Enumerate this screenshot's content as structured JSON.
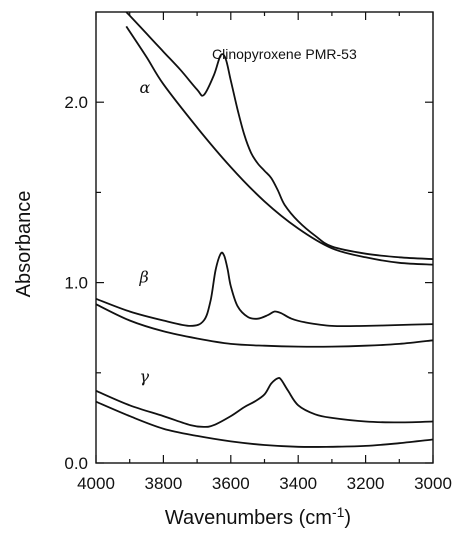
{
  "chart_data": {
    "type": "line",
    "title": "",
    "annotation": "Clinopyroxene PMR-53",
    "xlabel": "Wavenumbers (cm",
    "xlabel_superscript": "-1",
    "xlabel_suffix": ")",
    "ylabel": "Absorbance",
    "xlim": [
      4000,
      3000
    ],
    "ylim": [
      0.0,
      2.5
    ],
    "x_ticks": [
      4000,
      3800,
      3600,
      3400,
      3200,
      3000
    ],
    "x_tick_labels": [
      "4000",
      "3800",
      "3600",
      "3400",
      "3200",
      "3000"
    ],
    "y_major_ticks": [
      0.0,
      1.0,
      2.0
    ],
    "y_tick_labels": [
      "0.0",
      "1.0",
      "2.0"
    ],
    "y_minor_ticks": [
      0.5,
      1.5
    ],
    "grid": false,
    "series_labels": [
      {
        "text": "α",
        "x": 3960,
        "y": 2.05
      },
      {
        "text": "β",
        "x": 3960,
        "y": 1.0
      },
      {
        "text": "γ",
        "x": 3960,
        "y": 0.45
      }
    ],
    "series": [
      {
        "group": "α",
        "x": [
          3910,
          3850,
          3800,
          3750,
          3700,
          3680,
          3650,
          3630,
          3615,
          3600,
          3580,
          3560,
          3540,
          3520,
          3500,
          3480,
          3460,
          3440,
          3400,
          3350,
          3300,
          3200,
          3100,
          3000
        ],
        "y": [
          2.5,
          2.38,
          2.28,
          2.18,
          2.07,
          2.04,
          2.15,
          2.26,
          2.24,
          2.12,
          1.96,
          1.82,
          1.72,
          1.66,
          1.62,
          1.58,
          1.51,
          1.43,
          1.34,
          1.26,
          1.2,
          1.16,
          1.14,
          1.13
        ]
      },
      {
        "group": "α",
        "x": [
          3910,
          3850,
          3800,
          3700,
          3600,
          3500,
          3400,
          3300,
          3200,
          3100,
          3000
        ],
        "y": [
          2.42,
          2.25,
          2.1,
          1.86,
          1.64,
          1.45,
          1.3,
          1.19,
          1.14,
          1.11,
          1.1
        ]
      },
      {
        "group": "β",
        "x": [
          4000,
          3900,
          3800,
          3720,
          3680,
          3660,
          3645,
          3630,
          3620,
          3610,
          3600,
          3580,
          3550,
          3520,
          3490,
          3470,
          3450,
          3420,
          3380,
          3300,
          3200,
          3100,
          3000
        ],
        "y": [
          0.91,
          0.84,
          0.79,
          0.76,
          0.79,
          0.9,
          1.07,
          1.16,
          1.15,
          1.08,
          0.98,
          0.87,
          0.81,
          0.8,
          0.82,
          0.84,
          0.83,
          0.8,
          0.78,
          0.76,
          0.76,
          0.765,
          0.77
        ]
      },
      {
        "group": "β",
        "x": [
          4000,
          3900,
          3800,
          3700,
          3600,
          3500,
          3400,
          3300,
          3200,
          3100,
          3000
        ],
        "y": [
          0.88,
          0.79,
          0.73,
          0.69,
          0.66,
          0.65,
          0.645,
          0.645,
          0.65,
          0.66,
          0.68
        ]
      },
      {
        "group": "γ",
        "x": [
          4000,
          3900,
          3800,
          3720,
          3680,
          3650,
          3600,
          3560,
          3530,
          3500,
          3480,
          3460,
          3450,
          3430,
          3400,
          3350,
          3300,
          3200,
          3100,
          3000
        ],
        "y": [
          0.4,
          0.32,
          0.26,
          0.21,
          0.2,
          0.21,
          0.26,
          0.31,
          0.34,
          0.38,
          0.44,
          0.47,
          0.46,
          0.4,
          0.32,
          0.27,
          0.25,
          0.23,
          0.225,
          0.23
        ]
      },
      {
        "group": "γ",
        "x": [
          4000,
          3900,
          3800,
          3700,
          3600,
          3500,
          3400,
          3300,
          3200,
          3100,
          3000
        ],
        "y": [
          0.34,
          0.26,
          0.19,
          0.15,
          0.12,
          0.1,
          0.09,
          0.09,
          0.095,
          0.11,
          0.13
        ]
      }
    ]
  }
}
